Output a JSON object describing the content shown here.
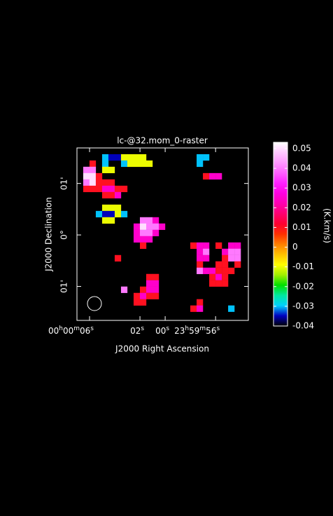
{
  "chart_data": {
    "type": "raster",
    "title": "lc-@32.mom_0-raster",
    "x_label": "J2000 Right Ascension",
    "y_label": "J2000 Declination",
    "colorbar_label": "(K.km/s)",
    "xlim": [
      7,
      -6.6
    ],
    "ylim": [
      -1.66,
      1.69
    ],
    "zlim": [
      -0.04,
      0.0532
    ],
    "xticks": [
      {
        "value": 6,
        "label": "00h00m06s"
      },
      {
        "value": 2,
        "label": "02s"
      },
      {
        "value": 0,
        "label": "00s"
      },
      {
        "value": -4,
        "label": "23h59m56s"
      }
    ],
    "yticks": [
      {
        "value": 1,
        "label": "01'"
      },
      {
        "value": 0,
        "label": "0°"
      },
      {
        "value": -1,
        "label": "01'"
      }
    ],
    "zticks": [
      0.05,
      0.04,
      0.03,
      0.02,
      0.01,
      0,
      -0.01,
      -0.02,
      -0.03,
      -0.04
    ],
    "colormap": [
      "#000000",
      "#0000c0",
      "#00d0ff",
      "#00e8a0",
      "#00e000",
      "#a0f000",
      "#ffff00",
      "#ffc000",
      "#ff8000",
      "#ff3000",
      "#ff0030",
      "#ff0070",
      "#ff00b0",
      "#ff00e0",
      "#ff20ff",
      "#ff60ff",
      "#ff98ff",
      "#ffc8ff",
      "#ffffff"
    ],
    "x": [
      4.75,
      4.25,
      3.75,
      3.25,
      2.75,
      2.25,
      1.75,
      -2.75,
      -3.25,
      5.75,
      4.75,
      3.25,
      2.75,
      2.25,
      1.75,
      1.25,
      -2.75,
      6.25,
      5.75,
      4.75,
      4.25,
      6.25,
      5.75,
      5.25,
      -3.25,
      -3.75,
      -4.25,
      6.25,
      5.75,
      5.25,
      4.75,
      4.25,
      6.25,
      5.75,
      5.25,
      4.75,
      4.25,
      3.75,
      3.25,
      4.75,
      4.25,
      3.75,
      4.75,
      4.25,
      3.75,
      5.25,
      4.75,
      4.25,
      3.75,
      3.25,
      4.75,
      4.25,
      1.75,
      1.25,
      0.75,
      2.25,
      1.75,
      1.25,
      0.75,
      0.25,
      2.25,
      1.75,
      1.25,
      0.75,
      2.25,
      1.75,
      1.25,
      1.75,
      -2.25,
      -2.75,
      -3.25,
      -4.25,
      -5.25,
      -5.75,
      -2.75,
      -3.25,
      -4.75,
      -5.25,
      -5.75,
      3.75,
      -2.75,
      -3.25,
      -4.75,
      -5.25,
      -5.75,
      -2.75,
      -4.25,
      -4.75,
      -5.75,
      -2.75,
      -3.25,
      -3.75,
      -4.25,
      -4.75,
      -5.25,
      1.25,
      0.75,
      -3.75,
      -4.25,
      -4.75,
      1.25,
      0.75,
      -3.75,
      -4.25,
      -4.75,
      3.25,
      1.75,
      1.25,
      0.75,
      2.25,
      1.75,
      1.25,
      0.75,
      2.25,
      1.75,
      -2.75,
      -2.25,
      -2.75,
      -5.25
    ],
    "y": [
      1.506,
      1.506,
      1.506,
      1.506,
      1.506,
      1.506,
      1.506,
      1.506,
      1.506,
      1.384,
      1.384,
      1.384,
      1.384,
      1.384,
      1.384,
      1.384,
      1.384,
      1.262,
      1.262,
      1.262,
      1.262,
      1.139,
      1.139,
      1.139,
      1.139,
      1.139,
      1.139,
      1.017,
      1.017,
      1.017,
      1.017,
      1.017,
      0.894,
      0.894,
      0.894,
      0.894,
      0.894,
      0.894,
      0.894,
      0.772,
      0.772,
      0.772,
      0.527,
      0.527,
      0.527,
      0.404,
      0.404,
      0.404,
      0.404,
      0.404,
      0.282,
      0.282,
      0.282,
      0.282,
      0.282,
      0.16,
      0.16,
      0.16,
      0.16,
      0.16,
      0.037,
      0.037,
      0.037,
      0.037,
      -0.085,
      -0.085,
      -0.085,
      -0.208,
      -0.208,
      -0.208,
      -0.208,
      -0.208,
      -0.208,
      -0.208,
      -0.33,
      -0.33,
      -0.33,
      -0.33,
      -0.33,
      -0.453,
      -0.453,
      -0.453,
      -0.453,
      -0.453,
      -0.453,
      -0.575,
      -0.575,
      -0.575,
      -0.575,
      -0.698,
      -0.698,
      -0.698,
      -0.698,
      -0.698,
      -0.698,
      -0.82,
      -0.82,
      -0.82,
      -0.82,
      -0.82,
      -0.943,
      -0.943,
      -0.943,
      -0.943,
      -0.943,
      -1.065,
      -1.065,
      -1.065,
      -1.065,
      -1.188,
      -1.188,
      -1.188,
      -1.188,
      -1.31,
      -1.31,
      -1.31,
      -1.432,
      -1.432,
      -1.432
    ],
    "values": [
      -0.03,
      -0.035,
      -0.035,
      -0.01,
      -0.01,
      -0.01,
      -0.01,
      -0.03,
      -0.03,
      0.01,
      -0.03,
      -0.03,
      -0.01,
      -0.01,
      -0.01,
      -0.01,
      -0.03,
      0.04,
      0.04,
      -0.01,
      -0.01,
      0.05,
      0.05,
      0.01,
      0.01,
      0.025,
      0.025,
      0.04,
      0.05,
      0.01,
      0.01,
      0.01,
      0.01,
      0.01,
      0.01,
      0.025,
      0.025,
      0.01,
      0.01,
      0.01,
      0.01,
      0.025,
      -0.01,
      -0.01,
      -0.01,
      -0.03,
      -0.035,
      -0.035,
      -0.01,
      -0.03,
      -0.01,
      -0.01,
      0.04,
      0.04,
      0.025,
      0.025,
      0.05,
      0.04,
      0.04,
      0.025,
      0.025,
      0.04,
      0.04,
      0.025,
      0.025,
      0.025,
      0.025,
      0.01,
      0.01,
      0.025,
      0.025,
      0.01,
      0.025,
      0.025,
      0.025,
      0.04,
      0.025,
      0.04,
      0.04,
      0.01,
      0.025,
      0.025,
      0.01,
      0.04,
      0.04,
      0.01,
      0.01,
      0.01,
      0.01,
      0.04,
      0.025,
      0.025,
      0.01,
      0.01,
      0.01,
      0.01,
      0.01,
      0.01,
      0.025,
      0.01,
      0.025,
      0.025,
      0.01,
      0.01,
      0.01,
      0.04,
      0.01,
      0.025,
      0.025,
      0.01,
      0.025,
      0.01,
      0.01,
      0.01,
      0.01,
      0.01,
      0.01,
      0.025,
      -0.03
    ]
  }
}
